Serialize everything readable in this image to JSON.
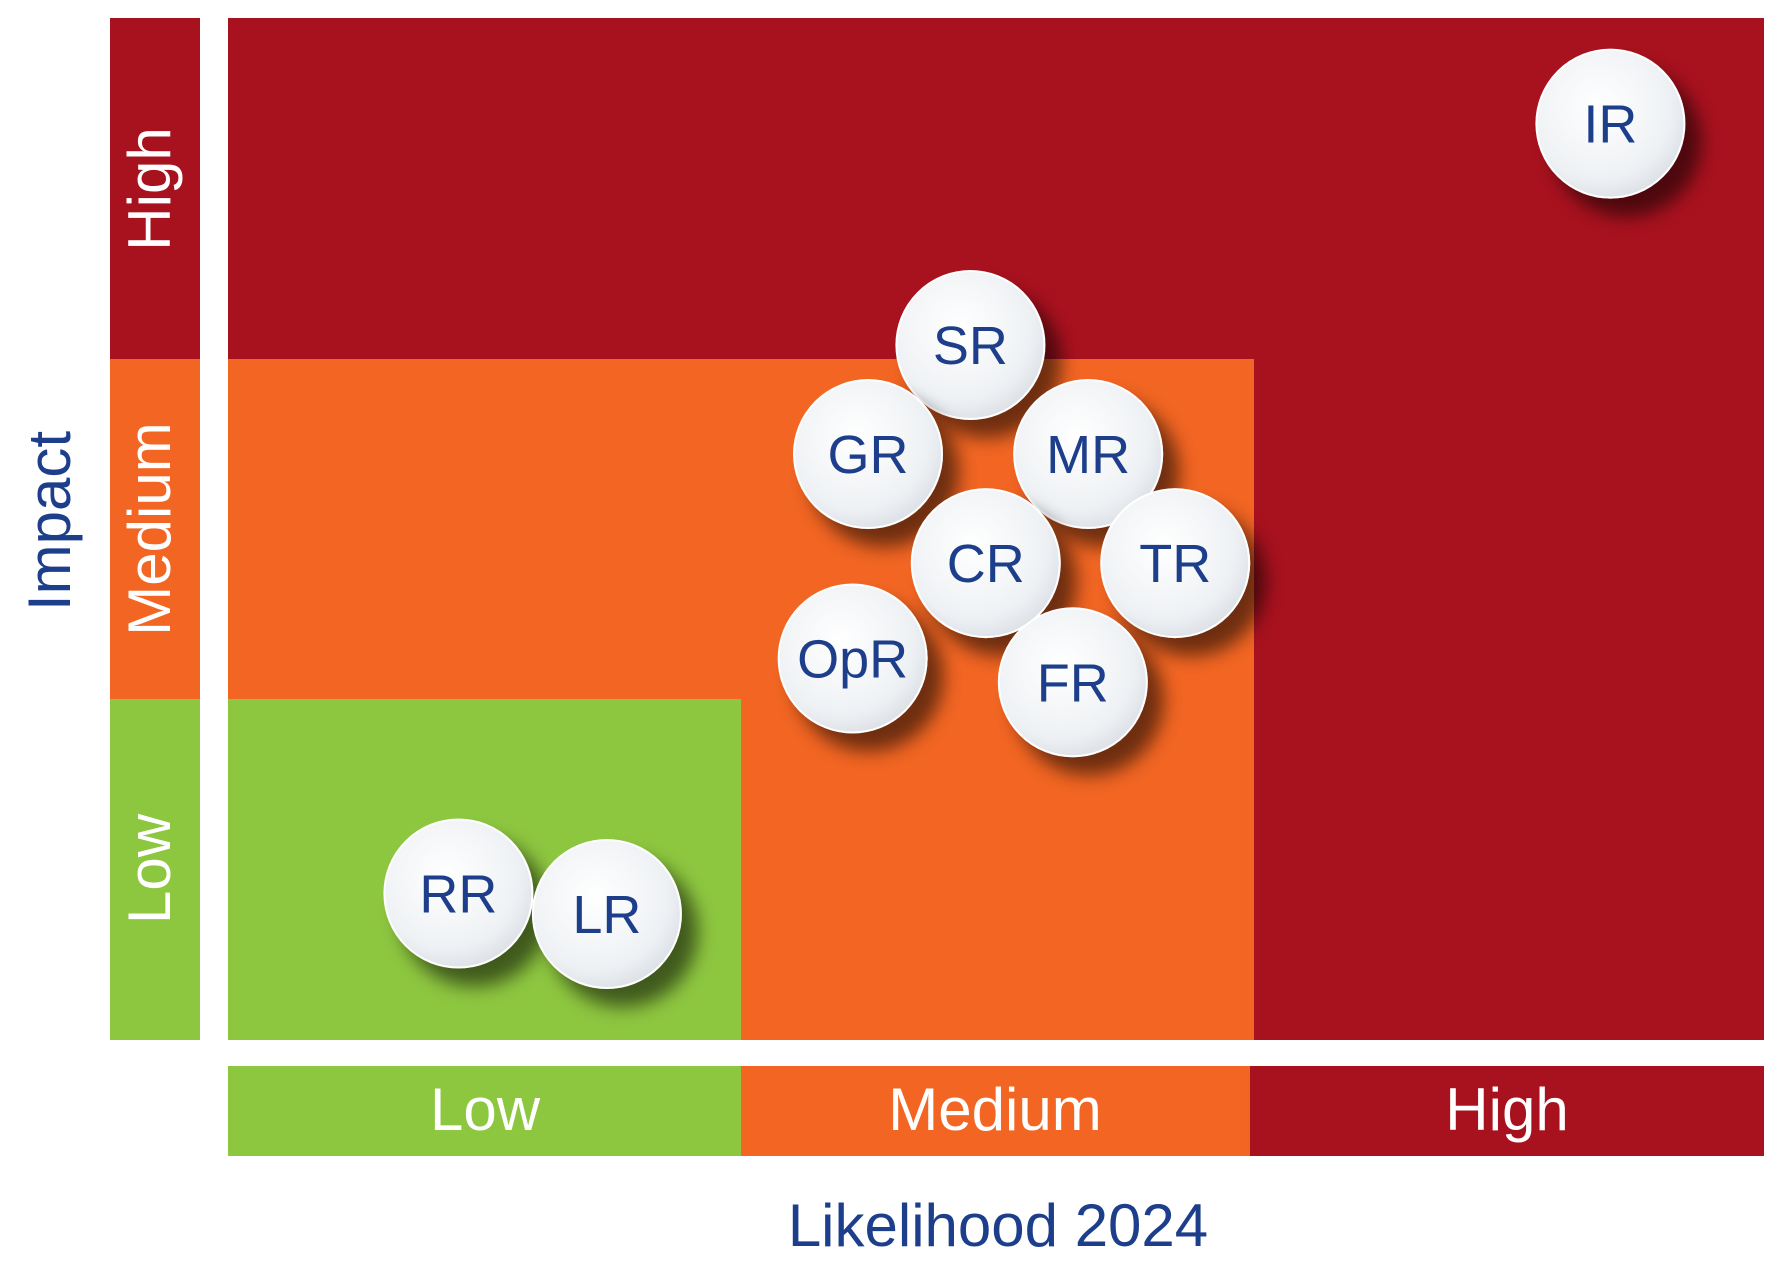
{
  "chart_data": {
    "type": "scatter",
    "title": "",
    "xlabel": "Likelihood 2024",
    "ylabel": "Impact",
    "x_scale": {
      "min": 0,
      "max": 3,
      "bands": [
        "Low",
        "Medium",
        "High"
      ]
    },
    "y_scale": {
      "min": 0,
      "max": 3,
      "bands": [
        "Low",
        "Medium",
        "High"
      ]
    },
    "colors": {
      "low": "#8dc63f",
      "medium": "#f26522",
      "high": "#a8111e",
      "text_navy": "#1d3e8a",
      "bubble": "#eef1f4",
      "white": "#ffffff"
    },
    "points": [
      {
        "label": "IR",
        "x": 2.7,
        "y": 2.69
      },
      {
        "label": "SR",
        "x": 1.45,
        "y": 2.04
      },
      {
        "label": "GR",
        "x": 1.25,
        "y": 1.72
      },
      {
        "label": "MR",
        "x": 1.68,
        "y": 1.72
      },
      {
        "label": "CR",
        "x": 1.48,
        "y": 1.4
      },
      {
        "label": "TR",
        "x": 1.85,
        "y": 1.4
      },
      {
        "label": "OpR",
        "x": 1.22,
        "y": 1.12
      },
      {
        "label": "FR",
        "x": 1.65,
        "y": 1.05
      },
      {
        "label": "RR",
        "x": 0.45,
        "y": 0.43
      },
      {
        "label": "LR",
        "x": 0.74,
        "y": 0.37
      }
    ]
  }
}
